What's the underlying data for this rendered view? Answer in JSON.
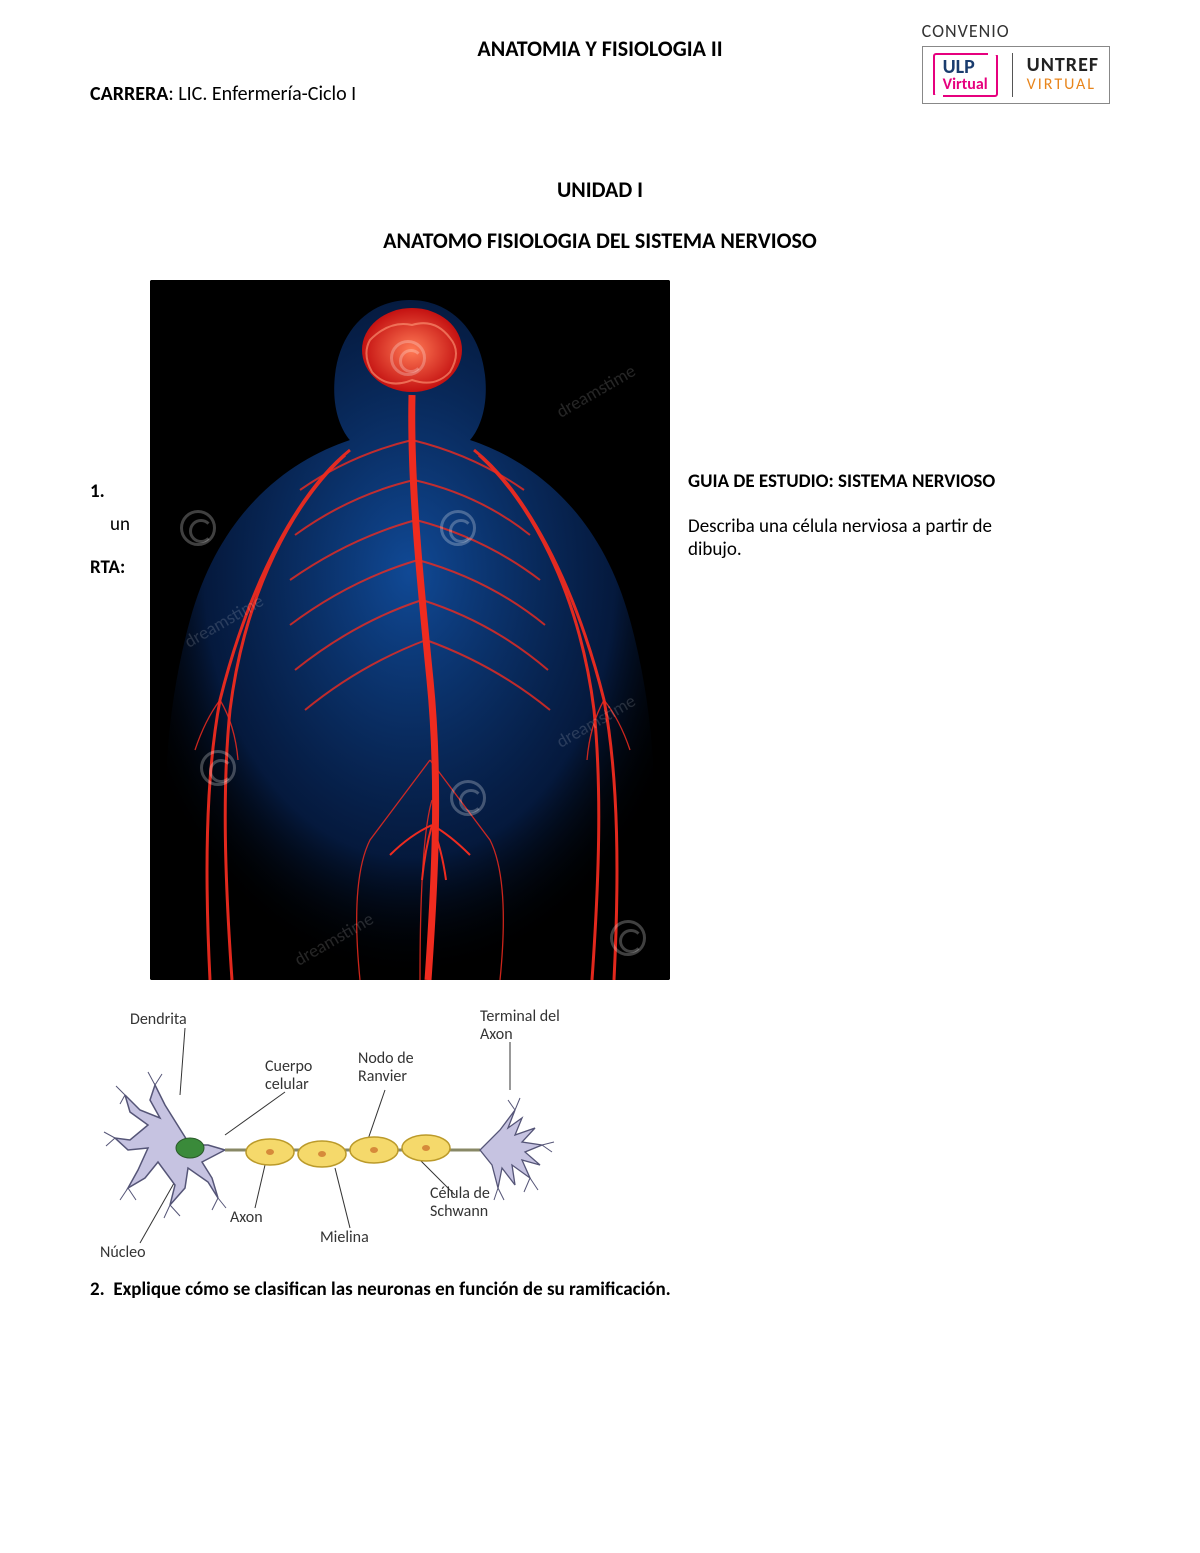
{
  "header": {
    "course_title": "ANATOMIA Y FISIOLOGIA II",
    "career_label": "CARRERA",
    "career_value": ": LIC. Enfermería-Ciclo I"
  },
  "logo": {
    "convenio": "CONVENIO",
    "ulp_top": "ULP",
    "ulp_bot": "Virtual",
    "untref_top": "UNTREF",
    "untref_bot": "VIRTUAL",
    "colors": {
      "ulp_border": "#e6007e",
      "ulp_top_color": "#1a3c6e",
      "ulp_bot_color": "#e6007e",
      "untref_top_color": "#222222",
      "untref_bot_color": "#e8851c"
    }
  },
  "unit": {
    "label": "UNIDAD I",
    "title": "ANATOMO FISIOLOGIA DEL SISTEMA NERVIOSO"
  },
  "left": {
    "num": "1.",
    "un": "un",
    "rta": "RTA:"
  },
  "right": {
    "guide_title": "GUIA DE ESTUDIO: SISTEMA NERVIOSO",
    "q1_line1": "Describa una célula nerviosa a partir de",
    "q1_line2": "dibujo."
  },
  "figure_main": {
    "type": "anatomical-illustration",
    "background": "#000000",
    "body_glow": "#0a4fae",
    "body_fill": "#082a66",
    "nerve_color": "#ef2b1f",
    "brain_color": "#ff3b2e",
    "watermark_text": "dreamstime",
    "watermark_color_alpha": 0.15
  },
  "neuron_diagram": {
    "type": "labeled-diagram",
    "labels": {
      "dendrita": "Dendrita",
      "cuerpo": "Cuerpo celular",
      "nodo": "Nodo de Ranvier",
      "terminal": "Terminal del Axon",
      "axon": "Axon",
      "mielina": "Mielina",
      "schwann": "Célula de Schwann",
      "nucleo": "Núcleo"
    },
    "colors": {
      "soma_fill": "#c6c3e1",
      "soma_stroke": "#555577",
      "nucleus_fill": "#3a8a3a",
      "myelin_fill": "#f5d96b",
      "myelin_stroke": "#bb9a2a",
      "axon_stroke": "#888866",
      "terminal_fill": "#c6c3e1",
      "line": "#333333",
      "label_fontsize": 16
    },
    "positions": {
      "dendrita": [
        40,
        10
      ],
      "cuerpo": [
        175,
        60
      ],
      "nodo": [
        268,
        50
      ],
      "terminal": [
        390,
        8
      ],
      "axon": [
        140,
        210
      ],
      "mielina": [
        230,
        230
      ],
      "schwann": [
        340,
        190
      ],
      "nucleo": [
        10,
        245
      ]
    }
  },
  "q2": {
    "num": "2.",
    "text": "Explique cómo se clasifican las neuronas en función de su ramificación."
  }
}
